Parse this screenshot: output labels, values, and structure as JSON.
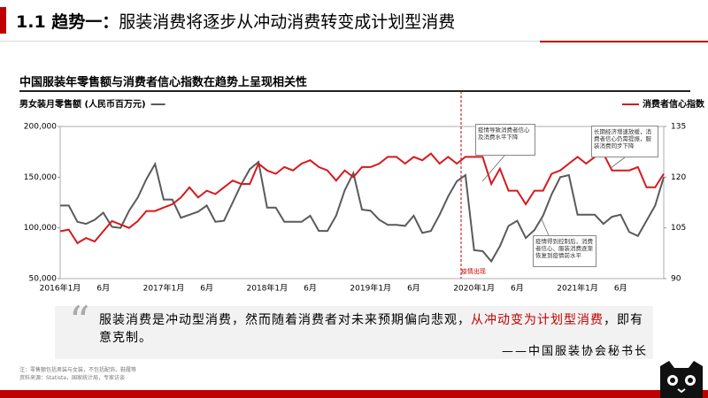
{
  "header": {
    "number": "1.1 趋势一：",
    "title": "服装消费将逐步从冲动消费转变成计划型消费"
  },
  "chart_data": {
    "type": "line",
    "title": "中国服装年零售额与消费者信心指数在趋势上呈现相关性",
    "categories": [
      "2016年1月",
      null,
      null,
      null,
      null,
      "6月",
      null,
      null,
      null,
      null,
      null,
      null,
      "2017年1月",
      null,
      null,
      null,
      null,
      "6月",
      null,
      null,
      null,
      null,
      null,
      null,
      "2018年1月",
      null,
      null,
      null,
      null,
      "6月",
      null,
      null,
      null,
      null,
      null,
      null,
      "2019年1月",
      null,
      null,
      null,
      null,
      "6月",
      null,
      null,
      null,
      null,
      null,
      null,
      "2020年1月",
      null,
      null,
      null,
      null,
      "6月",
      null,
      null,
      null,
      null,
      null,
      null,
      "2021年1月",
      null,
      null,
      null,
      null,
      "6月",
      null,
      null,
      null,
      null,
      null
    ],
    "series": [
      {
        "name": "男女装月零售额 (人民币百万元)",
        "color": "#5a5a5a",
        "axis": "y",
        "values": [
          122000,
          122000,
          106000,
          104000,
          108000,
          115000,
          101000,
          100000,
          117000,
          130000,
          148000,
          163000,
          128000,
          128000,
          110000,
          113000,
          116000,
          122000,
          106000,
          107000,
          125000,
          143000,
          158000,
          165000,
          120000,
          120000,
          106000,
          106000,
          106000,
          112000,
          97000,
          97000,
          112000,
          137000,
          154000,
          118000,
          117000,
          108000,
          103000,
          103000,
          102000,
          112000,
          95000,
          97000,
          113000,
          131000,
          146000,
          152000,
          78000,
          77000,
          67000,
          82000,
          102000,
          107000,
          90000,
          98000,
          112000,
          133000,
          150000,
          152000,
          113000,
          113000,
          113000,
          104000,
          111000,
          113000,
          96000,
          92000,
          107000,
          122000,
          150000
        ]
      },
      {
        "name": "消费者信心指数",
        "color": "#d7191c",
        "axis": "y2",
        "values": [
          104,
          104.5,
          100.5,
          102,
          101,
          104,
          107,
          106,
          105,
          107,
          110,
          110,
          111,
          112,
          114,
          117,
          114,
          116,
          115,
          117,
          119,
          118,
          118,
          124,
          122,
          121,
          123,
          122,
          124,
          125,
          123,
          122,
          119,
          122,
          120,
          123,
          123,
          124,
          126,
          126,
          124,
          126,
          125,
          127,
          124,
          126,
          124,
          126,
          126,
          126,
          118,
          122.5,
          116,
          116,
          112,
          116,
          116,
          121,
          122,
          124,
          126,
          124,
          126,
          127,
          122,
          122,
          122,
          123,
          117,
          117,
          121
        ]
      }
    ],
    "ylim": [
      50000,
      200000
    ],
    "yticks": [
      {
        "value": 50000,
        "label": "50,000"
      },
      {
        "value": 100000,
        "label": "100,000"
      },
      {
        "value": 150000,
        "label": "150,000"
      },
      {
        "value": 200000,
        "label": "200,000"
      }
    ],
    "y2lim": [
      90,
      135
    ],
    "y2ticks": [
      90,
      105,
      120,
      135
    ],
    "annotations": [
      "疫情导致消费者信心及消费水平下降",
      "长期经济增速放缓，消费者信心仍需提振，服装消费同步下降",
      "疫情得到控制后，消费者信心、服装消费逐渐恢复到疫情前水平",
      "疫情出现"
    ]
  },
  "quote": {
    "text": "服装消费是冲动型消费，然而随着消费者对未来预期偏向悲观，",
    "highlight": "从冲动变为计划型消费",
    "tail": "，即有意克制。",
    "source": "——中国服装协会秘书长"
  },
  "notes": [
    "注：零售额包括男装与女装，不包括配饰、鞋履等",
    "资料来源：Statista，国家统计局，专家访谈"
  ]
}
